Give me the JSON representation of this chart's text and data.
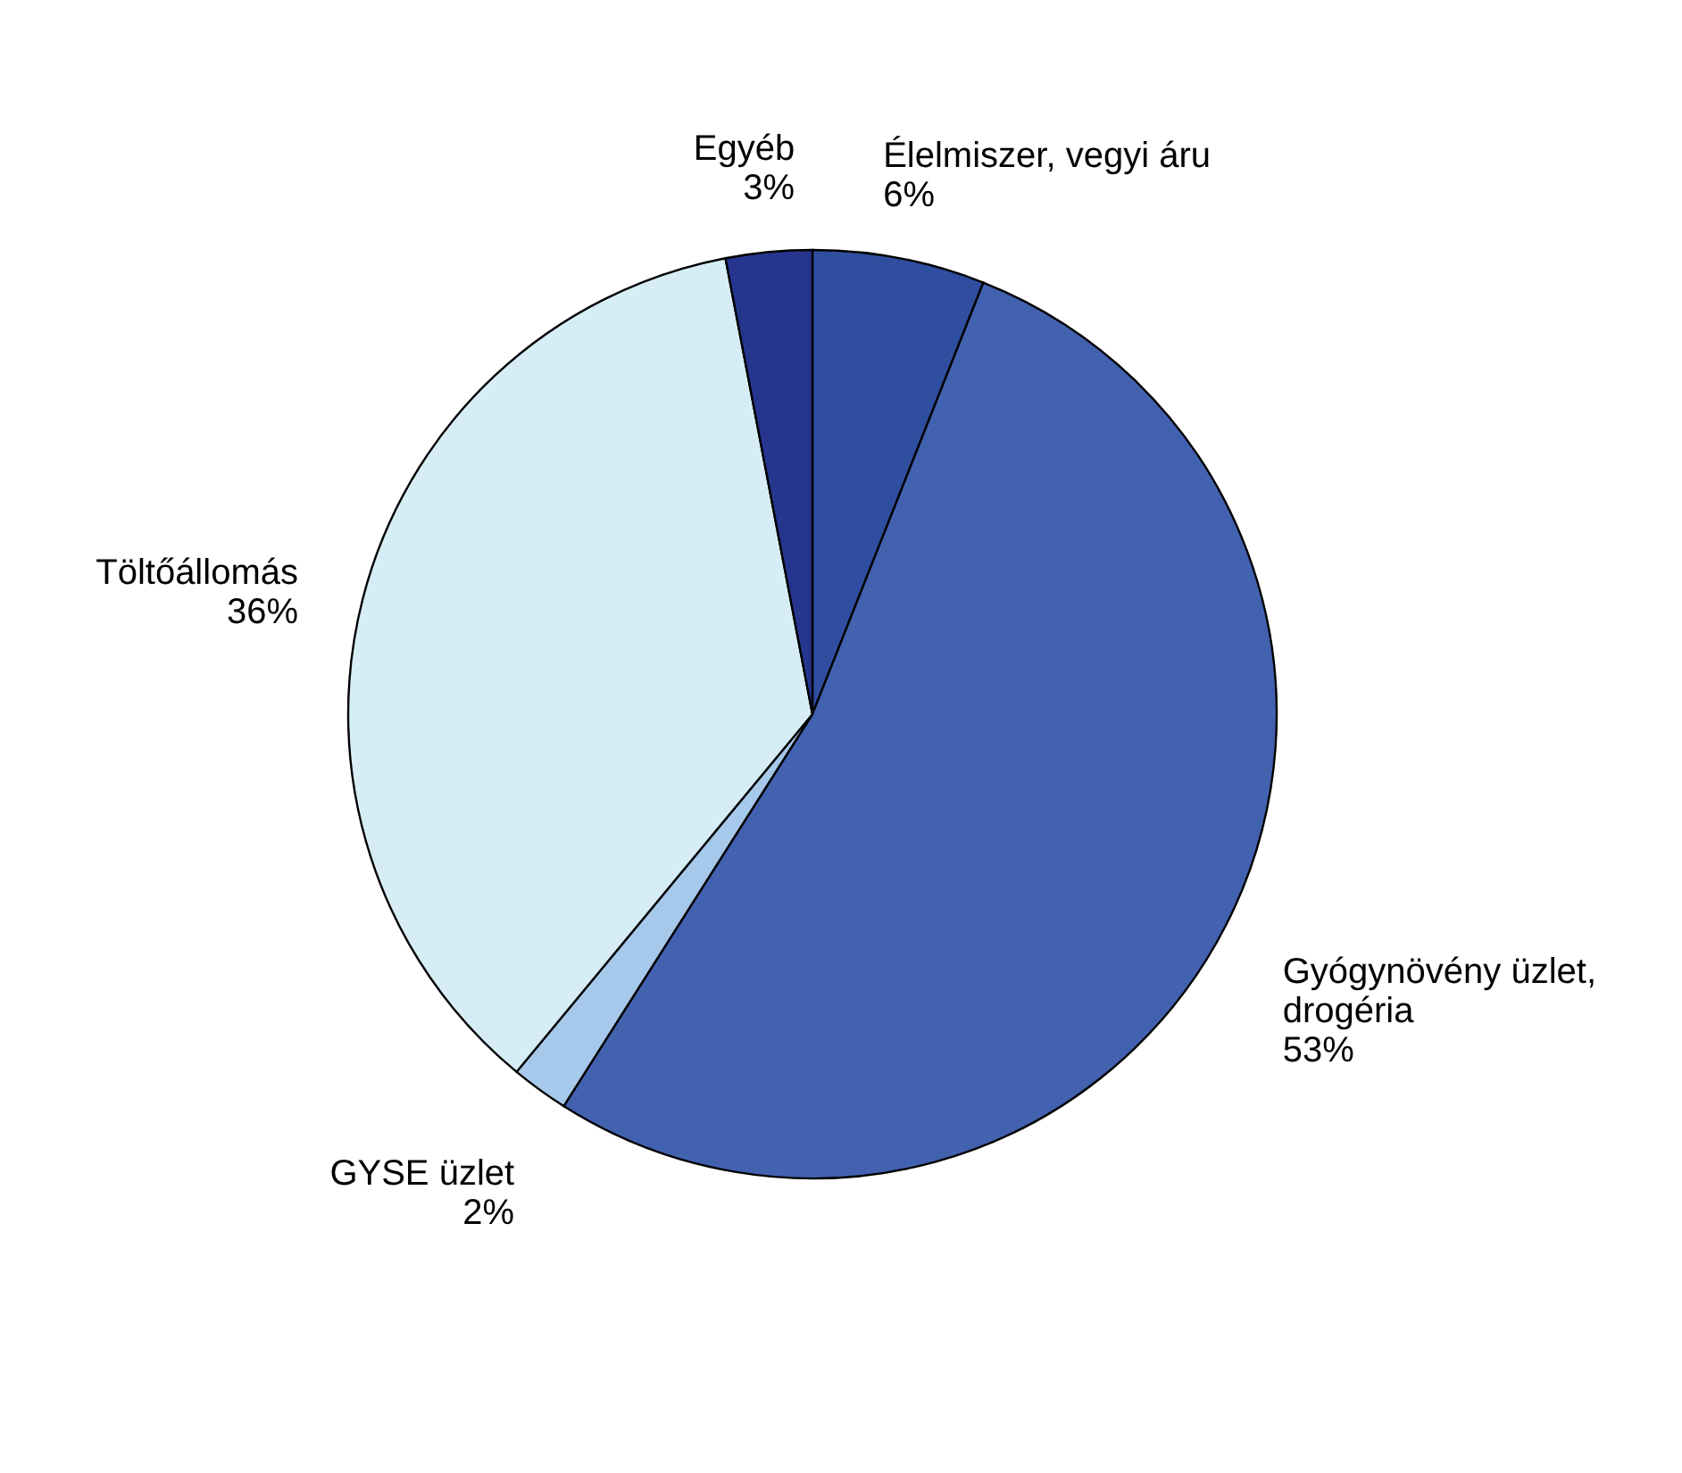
{
  "chart_data": {
    "type": "pie",
    "categories": [
      "Élelmiszer, vegyi áru",
      "Gyógynövény üzlet,\ndrogéria",
      "GYSE üzlet",
      "Töltőállomás",
      "Egyéb"
    ],
    "values": [
      6,
      53,
      2,
      36,
      3
    ],
    "value_labels": [
      "6%",
      "53%",
      "2%",
      "36%",
      "3%"
    ],
    "colors": [
      "#2f4ea0",
      "#4262b0",
      "#a6c8ea",
      "#d6edf5",
      "#26368e"
    ],
    "legend": false
  }
}
